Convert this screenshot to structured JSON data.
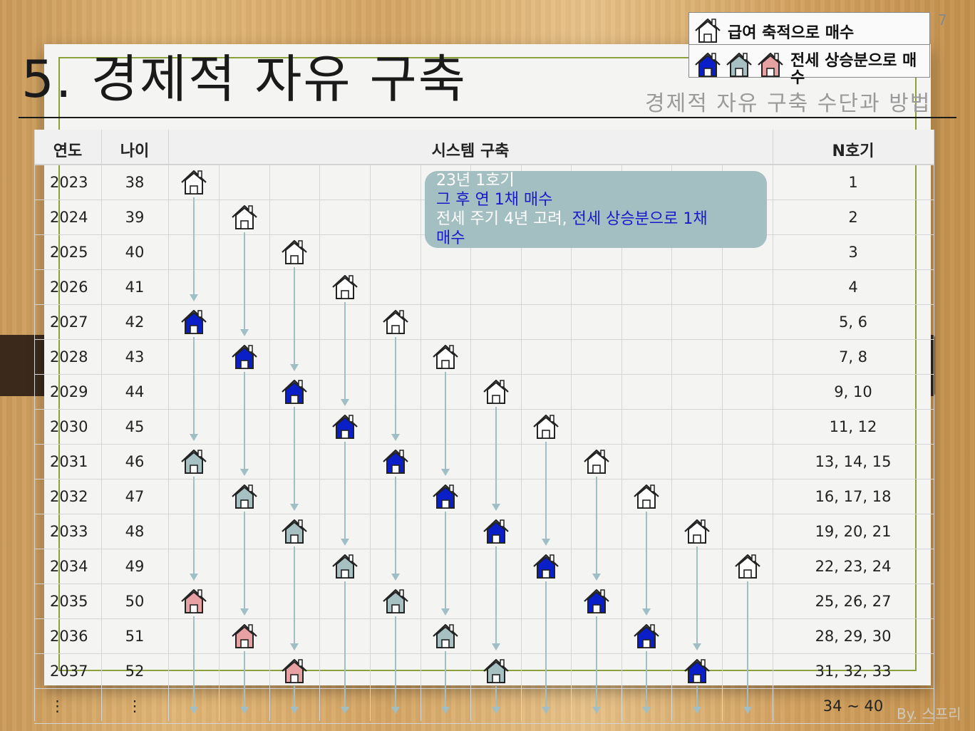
{
  "page_number": "7",
  "title": "5. 경제적 자유 구축",
  "subtitle": "경제적 자유 구축 수단과 방법",
  "legend": {
    "salary_label": "급여 축적으로 매수",
    "jeonse_label": "전세 상승분으로 매수"
  },
  "colors": {
    "blue_house": "#0a1fc7",
    "gray_house": "#a7c0c2",
    "pink_house": "#e8a1a3",
    "arrow": "#9fbfc4",
    "frame": "#8aa13b"
  },
  "table": {
    "headers": {
      "year": "연도",
      "age": "나이",
      "system": "시스템 구축",
      "n": "N호기"
    },
    "rows": [
      {
        "year": "2023",
        "age": "38",
        "n": "1"
      },
      {
        "year": "2024",
        "age": "39",
        "n": "2"
      },
      {
        "year": "2025",
        "age": "40",
        "n": "3"
      },
      {
        "year": "2026",
        "age": "41",
        "n": "4"
      },
      {
        "year": "2027",
        "age": "42",
        "n": "5, 6"
      },
      {
        "year": "2028",
        "age": "43",
        "n": "7, 8"
      },
      {
        "year": "2029",
        "age": "44",
        "n": "9, 10"
      },
      {
        "year": "2030",
        "age": "45",
        "n": "11, 12"
      },
      {
        "year": "2031",
        "age": "46",
        "n": "13, 14, 15"
      },
      {
        "year": "2032",
        "age": "47",
        "n": "16, 17, 18"
      },
      {
        "year": "2033",
        "age": "48",
        "n": "19, 20, 21"
      },
      {
        "year": "2034",
        "age": "49",
        "n": "22, 23, 24"
      },
      {
        "year": "2035",
        "age": "50",
        "n": "25, 26, 27"
      },
      {
        "year": "2036",
        "age": "51",
        "n": "28, 29, 30"
      },
      {
        "year": "2037",
        "age": "52",
        "n": "31, 32, 33"
      },
      {
        "year": "⋮",
        "age": "⋮",
        "n": "34 ~ 40"
      }
    ]
  },
  "callout": {
    "line1": "23년 1호기",
    "line2": "그 후 연 1채 매수",
    "line3_prefix": "전세 주기 4년 고려,",
    "line3_highlight": "전세 상승분으로 1채",
    "line4": "매수"
  },
  "byline": "By. 스프리"
}
